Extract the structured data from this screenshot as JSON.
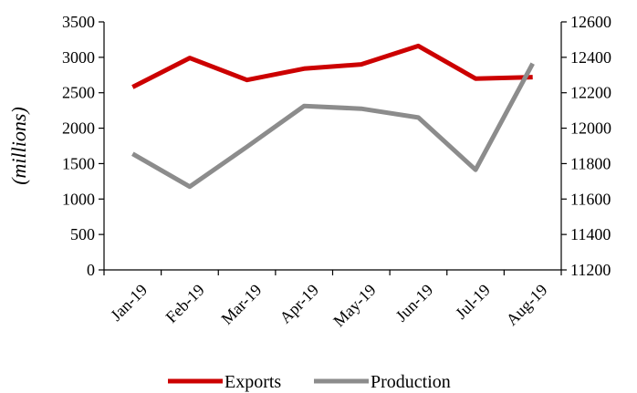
{
  "chart_data": {
    "type": "line",
    "categories": [
      "Jan-19",
      "Feb-19",
      "Mar-19",
      "Apr-19",
      "May-19",
      "Jun-19",
      "Jul-19",
      "Aug-19"
    ],
    "ylabel": "(millions)",
    "ylim": [
      0,
      3500
    ],
    "yticks": [
      0,
      500,
      1000,
      1500,
      2000,
      2500,
      3000,
      3500
    ],
    "y2lim": [
      11200,
      12600
    ],
    "y2ticks": [
      11200,
      11400,
      11600,
      11800,
      12000,
      12200,
      12400,
      12600
    ],
    "grid": false,
    "legend_position": "bottom",
    "series": [
      {
        "name": "Exports",
        "axis": "left",
        "color": "#cc0000",
        "values": [
          2580,
          2990,
          2680,
          2840,
          2900,
          3160,
          2700,
          2720
        ]
      },
      {
        "name": "Production",
        "axis": "right",
        "color": "#8c8c8c",
        "values": [
          11855,
          11670,
          11895,
          12125,
          12110,
          12060,
          11765,
          12365
        ]
      }
    ]
  }
}
